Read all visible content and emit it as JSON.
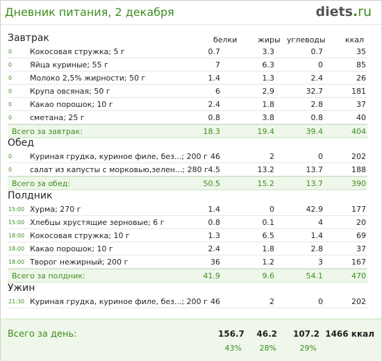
{
  "header": {
    "title": "Дневник питания, 2 декабря",
    "logo_main": "diets",
    "logo_dot": ".",
    "logo_tld": "ru"
  },
  "columns": [
    "белки",
    "жиры",
    "углеводы",
    "ккал"
  ],
  "sections": [
    {
      "name": "Завтрак",
      "items": [
        {
          "time": "0",
          "name": "Кокосовая стружка; 5 г",
          "b": "0.7",
          "f": "3.3",
          "c": "0.7",
          "k": "35"
        },
        {
          "time": "0",
          "name": "Яйца куриные; 55 г",
          "b": "7",
          "f": "6.3",
          "c": "0",
          "k": "85"
        },
        {
          "time": "0",
          "name": "Молоко 2,5% жирности; 50 г",
          "b": "1.4",
          "f": "1.3",
          "c": "2.4",
          "k": "26"
        },
        {
          "time": "0",
          "name": "Крупа овсяная; 50 г",
          "b": "6",
          "f": "2.9",
          "c": "32.7",
          "k": "181"
        },
        {
          "time": "0",
          "name": "Какао порошок; 10 г",
          "b": "2.4",
          "f": "1.8",
          "c": "2.8",
          "k": "37"
        },
        {
          "time": "0",
          "name": "сметана; 25 г",
          "b": "0.8",
          "f": "3.8",
          "c": "0.8",
          "k": "40"
        }
      ],
      "summary": {
        "label": "Всего за завтрак:",
        "b": "18.3",
        "f": "19.4",
        "c": "39.4",
        "k": "404"
      }
    },
    {
      "name": "Обед",
      "items": [
        {
          "time": "0",
          "name": "Куриная грудка, куриное филе, без...; 200 г",
          "b": "46",
          "f": "2",
          "c": "0",
          "k": "202"
        },
        {
          "time": "0",
          "name": "салат из капусты с морковью,зелен...; 280 г",
          "b": "4.5",
          "f": "13.2",
          "c": "13.7",
          "k": "188"
        }
      ],
      "summary": {
        "label": "Всего за обед:",
        "b": "50.5",
        "f": "15.2",
        "c": "13.7",
        "k": "390"
      }
    },
    {
      "name": "Полдник",
      "items": [
        {
          "time": "15:00",
          "name": "Хурма; 270 г",
          "b": "1.4",
          "f": "0",
          "c": "42.9",
          "k": "177"
        },
        {
          "time": "15:00",
          "name": "Хлебцы хрустящие зерновые; 6 г",
          "b": "0.8",
          "f": "0.1",
          "c": "4",
          "k": "20"
        },
        {
          "time": "18:00",
          "name": "Кокосовая стружка; 10 г",
          "b": "1.3",
          "f": "6.5",
          "c": "1.4",
          "k": "69"
        },
        {
          "time": "18:00",
          "name": "Какао порошок; 10 г",
          "b": "2.4",
          "f": "1.8",
          "c": "2.8",
          "k": "37"
        },
        {
          "time": "18:00",
          "name": "Творог нежирный; 200 г",
          "b": "36",
          "f": "1.2",
          "c": "3",
          "k": "167"
        }
      ],
      "summary": {
        "label": "Всего за полдник:",
        "b": "41.9",
        "f": "9.6",
        "c": "54.1",
        "k": "470"
      }
    },
    {
      "name": "Ужин",
      "items": [
        {
          "time": "21:30",
          "name": "Куриная грудка, куриное филе, без...; 200 г",
          "b": "46",
          "f": "2",
          "c": "0",
          "k": "202"
        }
      ],
      "summary": null
    }
  ],
  "total": {
    "label": "Всего за день:",
    "b": "156.7",
    "f": "46.2",
    "c": "107.2",
    "k": "1466 ккал",
    "pb": "43%",
    "pf": "28%",
    "pc": "29%"
  }
}
